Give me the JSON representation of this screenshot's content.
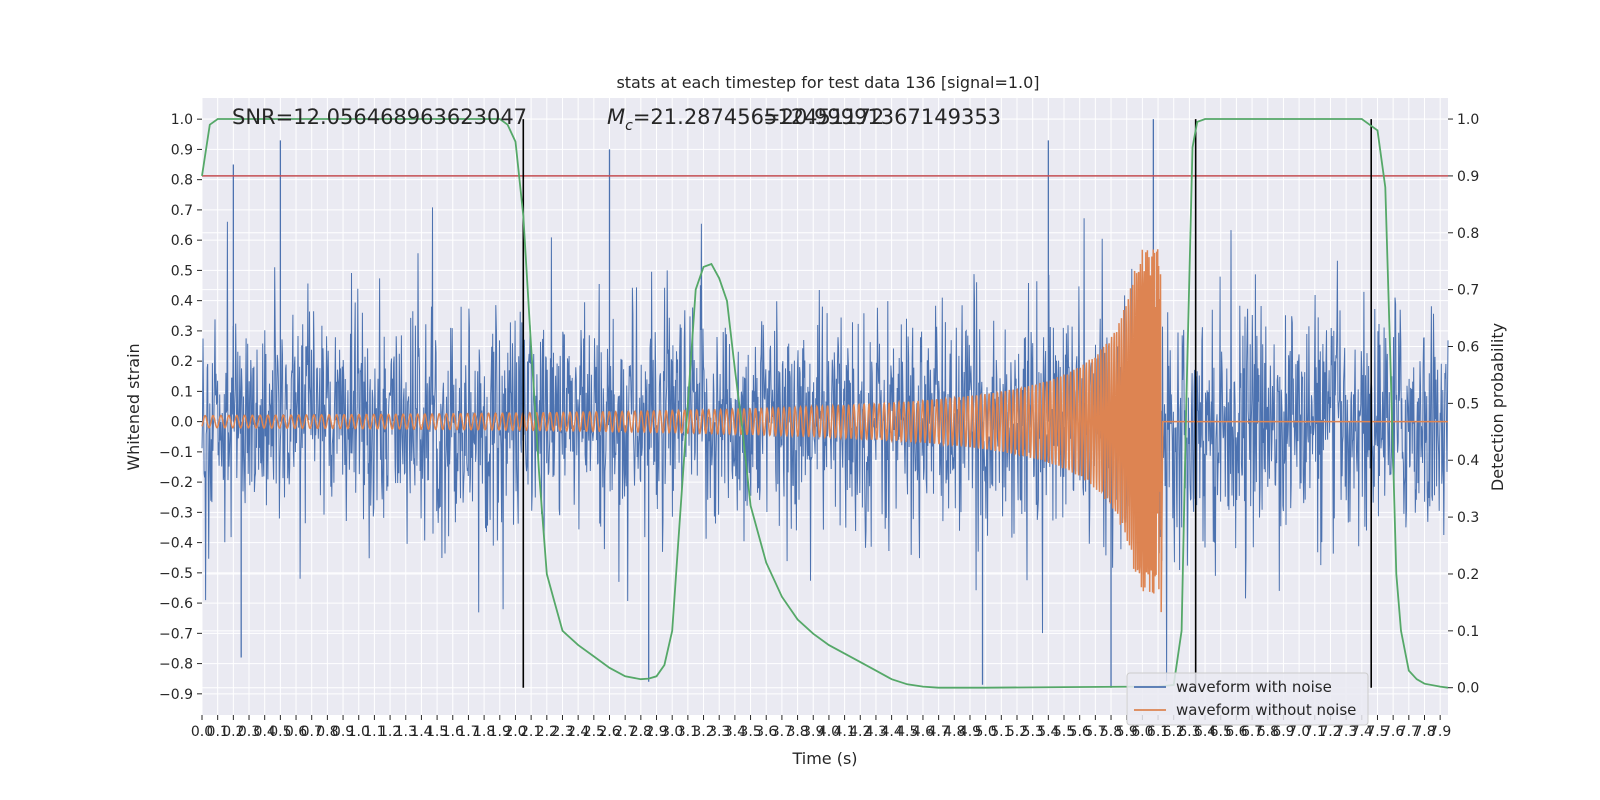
{
  "chart_data": {
    "type": "line",
    "title": "stats at each timestep for test data 136 [signal=1.0]",
    "xlabel": "Time (s)",
    "ylabel": "Whitened strain",
    "y2label": "Detection probability",
    "annotations": {
      "snr": "SNR=12.056468963623047",
      "mc_prefix": "M",
      "mc_sub": "c",
      "mc_value": "=21.287456512451172",
      "overlap": "=20.99991367149353"
    },
    "xlim": [
      0.0,
      7.95
    ],
    "ylim": [
      -0.97,
      1.07
    ],
    "y2lim": [
      -0.048,
      1.037
    ],
    "grid": true,
    "x_ticks": [
      0.0,
      0.1,
      0.2,
      0.3,
      0.4,
      0.5,
      0.6,
      0.7,
      0.8,
      0.9,
      1.0,
      1.1,
      1.2,
      1.3,
      1.4,
      1.5,
      1.6,
      1.7,
      1.8,
      1.9,
      2.0,
      2.1,
      2.2,
      2.3,
      2.4,
      2.5,
      2.6,
      2.7,
      2.8,
      2.9,
      3.0,
      3.1,
      3.2,
      3.3,
      3.4,
      3.5,
      3.6,
      3.7,
      3.8,
      3.9,
      4.0,
      4.1,
      4.2,
      4.3,
      4.4,
      4.5,
      4.6,
      4.7,
      4.8,
      4.9,
      5.0,
      5.1,
      5.2,
      5.3,
      5.4,
      5.5,
      5.6,
      5.7,
      5.8,
      5.9,
      6.0,
      6.1,
      6.2,
      6.3,
      6.4,
      6.5,
      6.6,
      6.7,
      6.8,
      6.9,
      7.0,
      7.1,
      7.2,
      7.3,
      7.4,
      7.5,
      7.6,
      7.7,
      7.8,
      7.9
    ],
    "y_ticks": [
      -0.9,
      -0.8,
      -0.7,
      -0.6,
      -0.5,
      -0.4,
      -0.3,
      -0.2,
      -0.1,
      0.0,
      0.1,
      0.2,
      0.3,
      0.4,
      0.5,
      0.6,
      0.7,
      0.8,
      0.9,
      1.0
    ],
    "y2_ticks": [
      0.0,
      0.1,
      0.2,
      0.3,
      0.4,
      0.5,
      0.6,
      0.7,
      0.8,
      0.9,
      1.0
    ],
    "threshold": {
      "axis": "right",
      "y": 0.9,
      "color": "#c44e52"
    },
    "vlines": {
      "x": [
        2.05,
        6.34,
        7.46
      ],
      "y_range": [
        -0.88,
        1.0
      ],
      "color": "#000000"
    },
    "legend": {
      "placement": "lower right",
      "entries": [
        "waveform with noise",
        "waveform without noise"
      ]
    },
    "series": [
      {
        "name": "waveform with noise",
        "color": "#4c72b0",
        "axis": "left",
        "envelope_typical": 0.3,
        "peak_values": [
          0.85,
          0.93,
          0.9,
          1.0,
          -0.88,
          -0.87,
          -0.83,
          -0.77,
          -0.73
        ]
      },
      {
        "name": "waveform without noise",
        "color": "#dd8452",
        "axis": "left",
        "chirp": {
          "start_amp": 0.02,
          "peak_time": 6.1,
          "peak_amp": 0.57,
          "min_value": -0.63,
          "after_value": 0.0
        }
      },
      {
        "name": "",
        "color": "#55a868",
        "axis": "right",
        "x": [
          0.0,
          0.05,
          0.1,
          0.2,
          0.5,
          1.0,
          1.5,
          1.8,
          1.9,
          1.95,
          2.0,
          2.05,
          2.1,
          2.15,
          2.2,
          2.25,
          2.3,
          2.4,
          2.5,
          2.6,
          2.7,
          2.8,
          2.85,
          2.9,
          2.95,
          3.0,
          3.05,
          3.1,
          3.15,
          3.2,
          3.25,
          3.3,
          3.35,
          3.4,
          3.45,
          3.5,
          3.6,
          3.7,
          3.8,
          3.9,
          4.0,
          4.1,
          4.2,
          4.3,
          4.4,
          4.5,
          4.6,
          4.7,
          5.0,
          5.5,
          6.0,
          6.1,
          6.2,
          6.25,
          6.28,
          6.32,
          6.35,
          6.4,
          6.45,
          6.5,
          7.0,
          7.4,
          7.45,
          7.5,
          7.55,
          7.58,
          7.62,
          7.65,
          7.7,
          7.75,
          7.8,
          7.9,
          7.95
        ],
        "y": [
          0.9,
          0.99,
          1.0,
          1.0,
          1.0,
          1.0,
          1.0,
          1.0,
          1.0,
          0.99,
          0.96,
          0.83,
          0.6,
          0.38,
          0.2,
          0.15,
          0.1,
          0.075,
          0.055,
          0.035,
          0.02,
          0.015,
          0.016,
          0.02,
          0.04,
          0.1,
          0.3,
          0.5,
          0.7,
          0.74,
          0.745,
          0.72,
          0.68,
          0.56,
          0.45,
          0.32,
          0.22,
          0.16,
          0.12,
          0.095,
          0.075,
          0.06,
          0.045,
          0.03,
          0.015,
          0.006,
          0.002,
          0.0,
          0.0,
          0.001,
          0.002,
          0.002,
          0.005,
          0.1,
          0.5,
          0.95,
          0.995,
          1.0,
          1.0,
          1.0,
          1.0,
          1.0,
          0.99,
          0.98,
          0.88,
          0.6,
          0.2,
          0.1,
          0.03,
          0.015,
          0.007,
          0.002,
          0.0
        ]
      }
    ]
  }
}
